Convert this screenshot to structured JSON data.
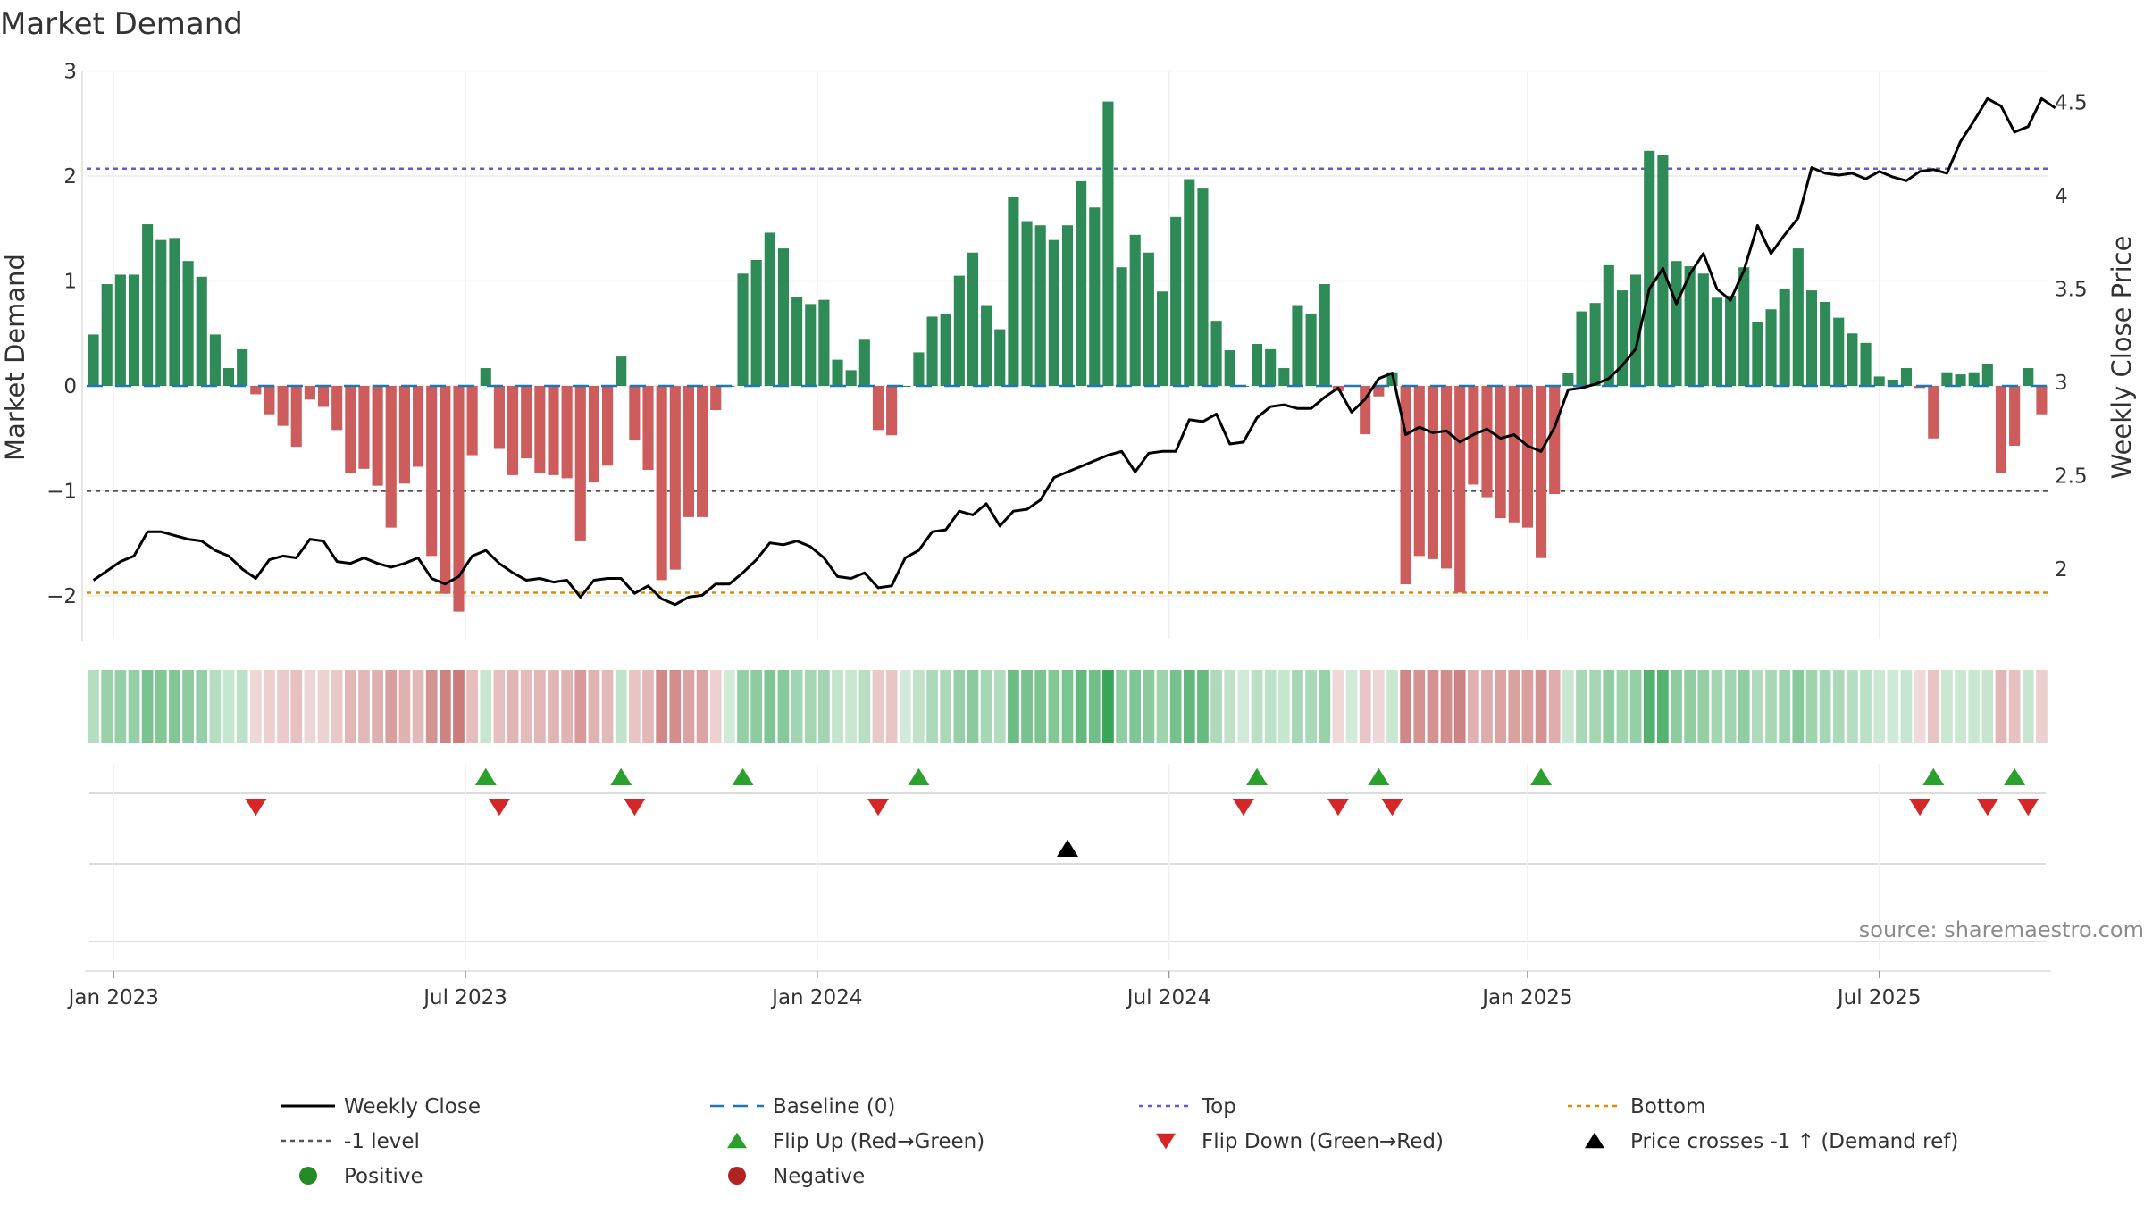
{
  "title": "Market Demand",
  "source": "source: sharemaestro.com",
  "colors": {
    "positive": "#2e8b57",
    "negative": "#cd5c5c",
    "close": "#000000",
    "baseline": "#1f77b4",
    "top": "#6a5acd",
    "minus1": "#555555",
    "bottom": "#e08a00",
    "flip_up": "#2ca02c",
    "flip_down": "#d62728",
    "cross": "#000000",
    "positive_dot": "#228b22",
    "negative_dot": "#b22222"
  },
  "chart_data": {
    "type": "bar",
    "title": "Market Demand",
    "ylabel": "Market Demand",
    "y2label": "Weekly Close Price",
    "ylim": [
      -2.4,
      3.0
    ],
    "y2lim": [
      1.55,
      4.6
    ],
    "yticks": [
      {
        "v": 3,
        "label": "3"
      },
      {
        "v": 2,
        "label": "2"
      },
      {
        "v": 1,
        "label": "1"
      },
      {
        "v": 0,
        "label": "0"
      },
      {
        "v": -1,
        "label": "−1"
      },
      {
        "v": -2,
        "label": "−2"
      }
    ],
    "y2ticks": [
      {
        "v": 4.5,
        "label": "4.5"
      },
      {
        "v": 4,
        "label": "4"
      },
      {
        "v": 3.5,
        "label": "3.5"
      },
      {
        "v": 3,
        "label": "3"
      },
      {
        "v": 2.5,
        "label": "2.5"
      },
      {
        "v": 2,
        "label": "2"
      }
    ],
    "xticks": [
      {
        "i": 1.5,
        "label": "Jan 2023"
      },
      {
        "i": 27.5,
        "label": "Jul 2023"
      },
      {
        "i": 53.5,
        "label": "Jan 2024"
      },
      {
        "i": 79.5,
        "label": "Jul 2024"
      },
      {
        "i": 106,
        "label": "Jan 2025"
      },
      {
        "i": 132,
        "label": "Jul 2025"
      }
    ],
    "reference_lines": {
      "top": 2.07,
      "minus1": -1.0,
      "bottom": -1.97,
      "baseline": 0
    },
    "demand": [
      0.49,
      0.97,
      1.06,
      1.06,
      1.54,
      1.39,
      1.41,
      1.19,
      1.04,
      0.49,
      0.17,
      0.35,
      -0.08,
      -0.27,
      -0.38,
      -0.58,
      -0.13,
      -0.2,
      -0.42,
      -0.83,
      -0.79,
      -0.95,
      -1.35,
      -0.93,
      -0.77,
      -1.62,
      -1.98,
      -2.15,
      -0.66,
      0.17,
      -0.6,
      -0.85,
      -0.69,
      -0.83,
      -0.85,
      -0.88,
      -1.48,
      -0.92,
      -0.76,
      0.28,
      -0.52,
      -0.8,
      -1.85,
      -1.75,
      -1.25,
      -1.25,
      -0.23,
      0.0,
      1.07,
      1.2,
      1.46,
      1.31,
      0.85,
      0.78,
      0.82,
      0.25,
      0.15,
      0.44,
      -0.42,
      -0.47,
      0.0,
      0.32,
      0.66,
      0.69,
      1.05,
      1.27,
      0.77,
      0.54,
      1.8,
      1.57,
      1.53,
      1.39,
      1.53,
      1.95,
      1.7,
      2.71,
      1.13,
      1.44,
      1.27,
      0.9,
      1.61,
      1.97,
      1.88,
      0.62,
      0.34,
      0.0,
      0.4,
      0.35,
      0.17,
      0.77,
      0.69,
      0.97,
      -0.05,
      0.0,
      -0.46,
      -0.1,
      0.13,
      -1.89,
      -1.62,
      -1.65,
      -1.74,
      -1.97,
      -0.94,
      -1.06,
      -1.26,
      -1.3,
      -1.35,
      -1.64,
      -1.03,
      0.12,
      0.71,
      0.79,
      1.15,
      0.91,
      1.06,
      2.24,
      2.2,
      1.19,
      1.14,
      1.07,
      0.84,
      0.86,
      1.13,
      0.61,
      0.73,
      0.92,
      1.31,
      0.91,
      0.8,
      0.65,
      0.5,
      0.41,
      0.09,
      0.06,
      0.17,
      -0.02,
      -0.5,
      0.13,
      0.11,
      0.13,
      0.21,
      -0.83,
      -0.57,
      0.17,
      -0.27
    ],
    "close": [
      1.94,
      1.99,
      2.04,
      2.07,
      2.2,
      2.2,
      2.18,
      2.16,
      2.15,
      2.1,
      2.07,
      2.0,
      1.95,
      2.05,
      2.07,
      2.06,
      2.16,
      2.15,
      2.04,
      2.03,
      2.06,
      2.03,
      2.01,
      2.03,
      2.06,
      1.95,
      1.92,
      1.96,
      2.07,
      2.1,
      2.03,
      1.98,
      1.94,
      1.95,
      1.93,
      1.94,
      1.85,
      1.94,
      1.95,
      1.95,
      1.87,
      1.91,
      1.84,
      1.81,
      1.85,
      1.86,
      1.92,
      1.92,
      1.98,
      2.05,
      2.14,
      2.13,
      2.15,
      2.12,
      2.06,
      1.96,
      1.95,
      1.98,
      1.9,
      1.91,
      2.06,
      2.1,
      2.2,
      2.21,
      2.31,
      2.29,
      2.35,
      2.23,
      2.31,
      2.32,
      2.37,
      2.49,
      2.52,
      2.55,
      2.58,
      2.61,
      2.63,
      2.52,
      2.62,
      2.63,
      2.63,
      2.8,
      2.79,
      2.83,
      2.67,
      2.68,
      2.81,
      2.87,
      2.88,
      2.86,
      2.86,
      2.92,
      2.97,
      2.84,
      2.91,
      3.02,
      3.05,
      2.72,
      2.76,
      2.73,
      2.74,
      2.68,
      2.72,
      2.75,
      2.7,
      2.72,
      2.66,
      2.63,
      2.76,
      2.96,
      2.97,
      2.99,
      3.02,
      3.09,
      3.18,
      3.5,
      3.61,
      3.42,
      3.58,
      3.69,
      3.5,
      3.44,
      3.6,
      3.84,
      3.69,
      3.79,
      3.88,
      4.15,
      4.12,
      4.11,
      4.12,
      4.09,
      4.13,
      4.1,
      4.08,
      4.13,
      4.14,
      4.12,
      4.29,
      4.4,
      4.52,
      4.48,
      4.34,
      4.37,
      4.52,
      4.47
    ],
    "flip_up": [
      29,
      39,
      48,
      61,
      86,
      95,
      107,
      136,
      142
    ],
    "flip_down": [
      12,
      30,
      40,
      58,
      85,
      92,
      96,
      135,
      140,
      143
    ],
    "price_cross": [
      72
    ]
  },
  "legend": [
    {
      "key": "close",
      "label": "Weekly Close",
      "type": "line"
    },
    {
      "key": "baseline",
      "label": "Baseline (0)",
      "type": "dash"
    },
    {
      "key": "top",
      "label": "Top",
      "type": "dot"
    },
    {
      "key": "bottom",
      "label": "Bottom",
      "type": "dot"
    },
    {
      "key": "minus1",
      "label": "-1 level",
      "type": "dot"
    },
    {
      "key": "flip_up",
      "label": "Flip Up (Red→Green)",
      "type": "tri-up"
    },
    {
      "key": "flip_down",
      "label": "Flip Down (Green→Red)",
      "type": "tri-down"
    },
    {
      "key": "cross",
      "label": "Price crosses -1 ↑ (Demand ref)",
      "type": "tri-up"
    },
    {
      "key": "positive_dot",
      "label": "Positive",
      "type": "circle"
    },
    {
      "key": "negative_dot",
      "label": "Negative",
      "type": "circle"
    }
  ]
}
